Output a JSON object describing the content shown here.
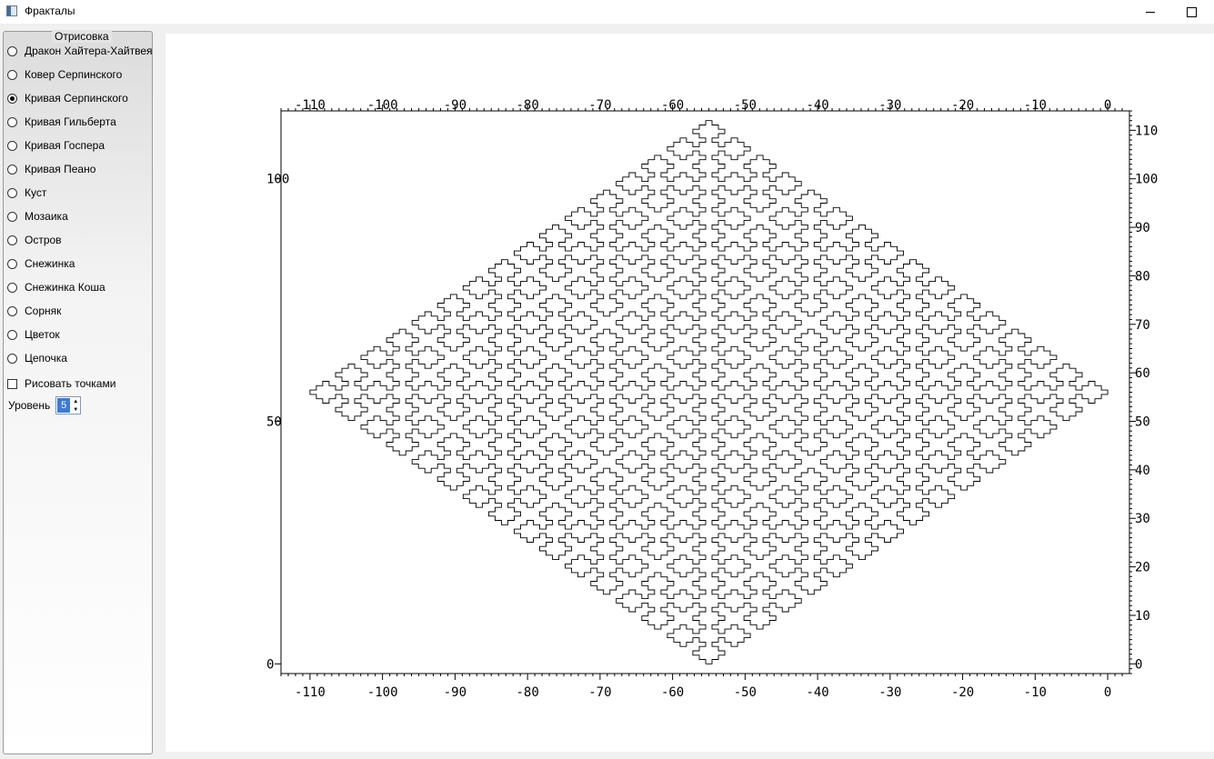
{
  "window": {
    "title": "Фракталы"
  },
  "sidebar": {
    "group_title": "Отрисовка",
    "items": [
      {
        "label": "Дракон Хайтера-Хайтвея",
        "checked": false
      },
      {
        "label": "Ковер Серпинского",
        "checked": false
      },
      {
        "label": "Кривая Серпинского",
        "checked": true
      },
      {
        "label": "Кривая Гильберта",
        "checked": false
      },
      {
        "label": "Кривая Госпера",
        "checked": false
      },
      {
        "label": "Кривая Пеано",
        "checked": false
      },
      {
        "label": "Куст",
        "checked": false
      },
      {
        "label": "Мозаика",
        "checked": false
      },
      {
        "label": "Остров",
        "checked": false
      },
      {
        "label": "Снежинка",
        "checked": false
      },
      {
        "label": "Снежинка Коша",
        "checked": false
      },
      {
        "label": "Сорняк",
        "checked": false
      },
      {
        "label": "Цветок",
        "checked": false
      },
      {
        "label": "Цепочка",
        "checked": false
      }
    ],
    "draw_points_label": "Рисовать точками",
    "draw_points_checked": false,
    "level_label": "Уровень",
    "level_value": "5"
  },
  "chart_data": {
    "type": "line",
    "title": "",
    "xlabel": "",
    "ylabel": "",
    "xlim": [
      -114,
      3
    ],
    "ylim": [
      -2,
      114
    ],
    "x_ticks": [
      -110,
      -100,
      -90,
      -80,
      -70,
      -60,
      -50,
      -40,
      -30,
      -20,
      -10,
      0
    ],
    "y_ticks_right": [
      0,
      10,
      20,
      30,
      40,
      50,
      60,
      70,
      80,
      90,
      100,
      110
    ],
    "y_ticks_left": [
      0,
      50,
      100
    ],
    "series": [
      {
        "curve": "Кривая Серпинского",
        "level": 5,
        "x_range": [
          -110,
          0
        ],
        "y_range": [
          0,
          112
        ],
        "color": "#000000"
      }
    ]
  }
}
